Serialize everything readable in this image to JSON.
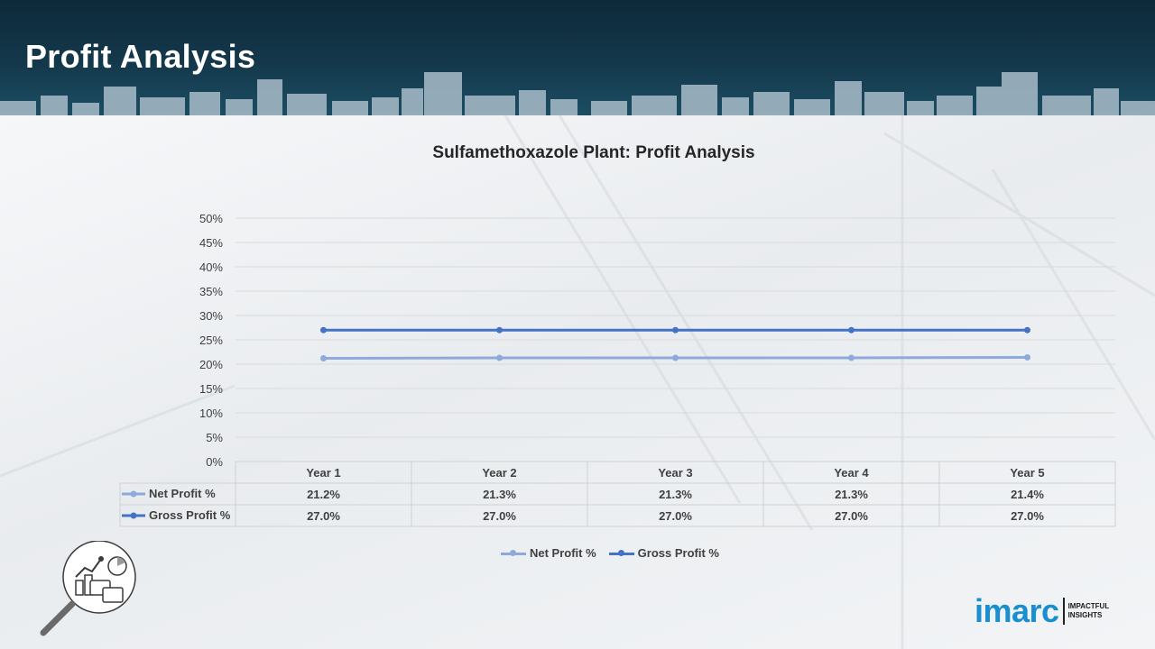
{
  "header": {
    "title": "Profit Analysis"
  },
  "chart_data": {
    "type": "line",
    "title": "Sulfamethoxazole Plant: Profit Analysis",
    "categories": [
      "Year 1",
      "Year 2",
      "Year 3",
      "Year 4",
      "Year 5"
    ],
    "series": [
      {
        "name": "Net Profit %",
        "values": [
          21.2,
          21.3,
          21.3,
          21.3,
          21.4
        ],
        "labels": [
          "21.2%",
          "21.3%",
          "21.3%",
          "21.3%",
          "21.4%"
        ],
        "color": "#8eaadb"
      },
      {
        "name": "Gross Profit %",
        "values": [
          27.0,
          27.0,
          27.0,
          27.0,
          27.0
        ],
        "labels": [
          "27.0%",
          "27.0%",
          "27.0%",
          "27.0%",
          "27.0%"
        ],
        "color": "#4472c4"
      }
    ],
    "ylim": [
      0,
      50
    ],
    "yticks": [
      "0%",
      "5%",
      "10%",
      "15%",
      "20%",
      "25%",
      "30%",
      "35%",
      "40%",
      "45%",
      "50%"
    ],
    "grid": true,
    "legend": "bottom",
    "data_table": true
  },
  "logo": {
    "word": "imarc",
    "tagline_1": "IMPACTFUL",
    "tagline_2": "INSIGHTS"
  },
  "icons": {
    "bottom_left": "analysis-magnifier-icon"
  }
}
